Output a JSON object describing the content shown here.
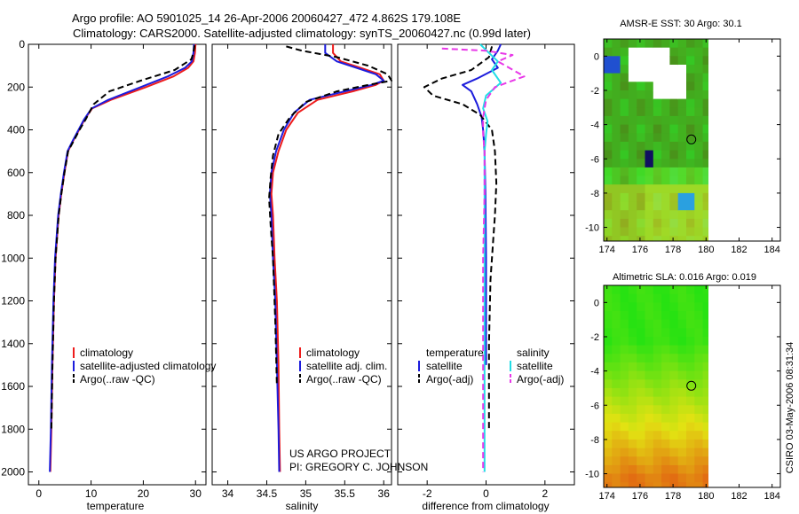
{
  "header": {
    "title_line1": "Argo profile: AO 5901025_14 26-Apr-2006 20060427_472 4.862S 179.108E",
    "title_line2": "Climatology: CARS2000. Satellite-adjusted climatology: synTS_20060427.nc (0.99d later)"
  },
  "project": {
    "line1": "US ARGO PROJECT",
    "line2": "PI: GREGORY C. JOHNSON"
  },
  "side_stamp": "CSIRO 03-May-2006 08:31:34",
  "colors": {
    "climatology": "#ee1c1c",
    "satellite_adjusted": "#1c1cdc",
    "argo": "#000000",
    "salinity_satellite": "#22dde6",
    "salinity_argo": "#e838e8"
  },
  "chart_data": [
    {
      "id": "temperature",
      "type": "line",
      "xlabel": "temperature",
      "xlim": [
        -2,
        32
      ],
      "ylim": [
        2060,
        0
      ],
      "xticks": [
        0,
        10,
        20,
        30
      ],
      "yticks": [
        0,
        200,
        400,
        600,
        800,
        1000,
        1200,
        1400,
        1600,
        1800,
        2000
      ],
      "legend": [
        "climatology",
        "satellite-adjusted climatology",
        "Argo(..raw -QC)"
      ],
      "series": [
        {
          "name": "climatology",
          "color": "#ee1c1c",
          "dash": false,
          "x": [
            30.0,
            29.9,
            29.6,
            28.6,
            25.8,
            20.5,
            13.8,
            10.2,
            8.8,
            7.7,
            6.6,
            5.6,
            4.9,
            4.3,
            3.8,
            3.2,
            2.9,
            2.6,
            2.4,
            2.2
          ],
          "y": [
            0,
            40,
            80,
            110,
            150,
            200,
            260,
            300,
            350,
            400,
            450,
            500,
            600,
            700,
            800,
            1000,
            1200,
            1500,
            1800,
            2000
          ]
        },
        {
          "name": "satellite-adjusted climatology",
          "color": "#1c1cdc",
          "dash": false,
          "x": [
            29.7,
            29.6,
            29.3,
            28.0,
            24.7,
            19.5,
            13.3,
            10.1,
            8.7,
            7.6,
            6.5,
            5.5,
            4.8,
            4.2,
            3.7,
            3.1,
            2.8,
            2.5,
            2.3,
            2.1
          ],
          "y": [
            0,
            40,
            80,
            110,
            150,
            200,
            260,
            300,
            350,
            400,
            450,
            500,
            600,
            700,
            800,
            1000,
            1200,
            1500,
            1800,
            2000
          ]
        },
        {
          "name": "Argo(..raw -QC)",
          "color": "#000000",
          "dash": true,
          "x": [
            29.8,
            29.6,
            29.2,
            26.0,
            19.5,
            13.5,
            10.5,
            9.0,
            7.8,
            6.7,
            5.6,
            4.9,
            4.3,
            3.8,
            3.2,
            2.9,
            2.6,
            2.4
          ],
          "y": [
            5,
            40,
            70,
            120,
            170,
            220,
            280,
            350,
            400,
            450,
            500,
            600,
            700,
            800,
            1000,
            1200,
            1500,
            1800
          ]
        }
      ]
    },
    {
      "id": "salinity",
      "type": "line",
      "xlabel": "salinity",
      "xlim": [
        33.8,
        36.1
      ],
      "ylim": [
        2060,
        0
      ],
      "xticks": [
        34,
        34.5,
        35,
        35.5,
        36
      ],
      "xticklabels": [
        "34",
        "34.5",
        "35",
        "35.5",
        "36"
      ],
      "legend": [
        "climatology",
        "satellite adj. clim.",
        "Argo(..raw -QC)"
      ],
      "series": [
        {
          "name": "climatology",
          "color": "#ee1c1c",
          "dash": false,
          "x": [
            35.35,
            35.35,
            35.45,
            35.7,
            35.95,
            36.0,
            35.9,
            35.6,
            35.15,
            34.9,
            34.75,
            34.65,
            34.58,
            34.56,
            34.58,
            34.6,
            34.63,
            34.65,
            34.66,
            34.67
          ],
          "y": [
            0,
            40,
            80,
            110,
            140,
            170,
            190,
            220,
            260,
            320,
            400,
            500,
            600,
            700,
            800,
            1000,
            1200,
            1500,
            1800,
            2000
          ]
        },
        {
          "name": "satellite adj. clim.",
          "color": "#1c1cdc",
          "dash": false,
          "x": [
            35.25,
            35.25,
            35.4,
            35.65,
            35.9,
            36.0,
            35.85,
            35.5,
            35.05,
            34.85,
            34.72,
            34.62,
            34.56,
            34.54,
            34.56,
            34.58,
            34.61,
            34.63,
            34.65,
            34.66
          ],
          "y": [
            0,
            40,
            80,
            110,
            140,
            170,
            190,
            220,
            260,
            320,
            400,
            500,
            600,
            700,
            800,
            1000,
            1200,
            1500,
            1800,
            2000
          ]
        },
        {
          "name": "Argo(..raw -QC)",
          "color": "#000000",
          "dash": true,
          "x": [
            34.75,
            34.95,
            35.4,
            35.8,
            36.05,
            36.1,
            35.8,
            35.4,
            35.0,
            34.8,
            34.65,
            34.58,
            34.55,
            34.53,
            34.55,
            34.58,
            34.61,
            34.63
          ],
          "y": [
            10,
            30,
            60,
            100,
            140,
            170,
            190,
            220,
            270,
            340,
            420,
            520,
            620,
            720,
            850,
            1000,
            1300,
            1600
          ]
        }
      ]
    },
    {
      "id": "difference",
      "type": "line",
      "xlabel": "difference from climatology",
      "xlim": [
        -3.0,
        3.0
      ],
      "ylim": [
        2060,
        0
      ],
      "xticks": [
        -2,
        0,
        2
      ],
      "legend_temperature_title": "temperature",
      "legend_salinity_title": "salinity",
      "legend_temperature": [
        "satellite",
        "Argo(-adj)"
      ],
      "legend_salinity": [
        "satellite",
        "Argo(-adj)"
      ],
      "series": [
        {
          "name": "temperature satellite",
          "color": "#1c1cdc",
          "dash": false,
          "x": [
            0.5,
            0.4,
            0.2,
            0.4,
            -0.3,
            -0.8,
            -0.5,
            -0.3,
            -0.15,
            -0.1,
            -0.05,
            -0.02,
            0.0,
            0.0
          ],
          "y": [
            0,
            30,
            70,
            110,
            160,
            190,
            220,
            280,
            340,
            400,
            500,
            700,
            1000,
            1500
          ]
        },
        {
          "name": "temperature Argo(-adj)",
          "color": "#000000",
          "dash": true,
          "x": [
            0.2,
            0.1,
            -0.5,
            -1.5,
            -2.1,
            -1.8,
            -0.8,
            -0.2,
            0.2,
            0.3,
            0.35,
            0.3,
            0.25,
            0.15,
            0.1,
            0.1
          ],
          "y": [
            10,
            60,
            120,
            160,
            200,
            240,
            280,
            330,
            400,
            500,
            650,
            800,
            900,
            1100,
            1400,
            1800
          ]
        },
        {
          "name": "salinity satellite",
          "color": "#22dde6",
          "dash": false,
          "x": [
            -0.2,
            0.1,
            0.4,
            0.2,
            0.5,
            0.0,
            -0.1,
            0.05,
            0.0,
            -0.05,
            -0.05,
            -0.05,
            -0.05,
            -0.05
          ],
          "y": [
            0,
            40,
            80,
            120,
            180,
            240,
            300,
            360,
            420,
            500,
            700,
            1000,
            1500,
            2000
          ]
        },
        {
          "name": "salinity Argo(-adj)",
          "color": "#e838e8",
          "dash": true,
          "x": [
            -1.5,
            0.0,
            0.9,
            0.4,
            1.3,
            0.3,
            0.0,
            -0.1,
            -0.1,
            -0.05,
            -0.05,
            -0.1,
            -0.1,
            -0.1
          ],
          "y": [
            20,
            30,
            50,
            80,
            150,
            200,
            260,
            340,
            420,
            500,
            700,
            1000,
            1400,
            2000
          ]
        }
      ]
    },
    {
      "id": "sst_map",
      "type": "heatmap",
      "title": "AMSR-E SST: 30 Argo: 30.1",
      "xlim": [
        173.8,
        184.5
      ],
      "ylim": [
        -10.8,
        1.0
      ],
      "xticks": [
        174,
        176,
        178,
        180,
        182,
        184
      ],
      "yticks": [
        0,
        -2,
        -4,
        -6,
        -8,
        -10
      ],
      "argo_position": [
        179.108,
        -4.862
      ]
    },
    {
      "id": "sla_map",
      "type": "heatmap",
      "title": "Altimetric SLA: 0.016 Argo: 0.019",
      "xlim": [
        173.8,
        184.5
      ],
      "ylim": [
        -10.8,
        1.0
      ],
      "xticks": [
        174,
        176,
        178,
        180,
        182,
        184
      ],
      "yticks": [
        0,
        -2,
        -4,
        -6,
        -8,
        -10
      ],
      "argo_position": [
        179.108,
        -4.862
      ]
    }
  ]
}
